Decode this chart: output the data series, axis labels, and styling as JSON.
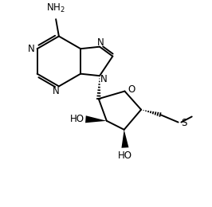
{
  "background_color": "#ffffff",
  "line_color": "#000000",
  "line_width": 1.4,
  "font_size": 8.5,
  "figsize": [
    2.66,
    2.6
  ],
  "dpi": 100,
  "xlim": [
    0,
    1
  ],
  "ylim": [
    0,
    1
  ]
}
